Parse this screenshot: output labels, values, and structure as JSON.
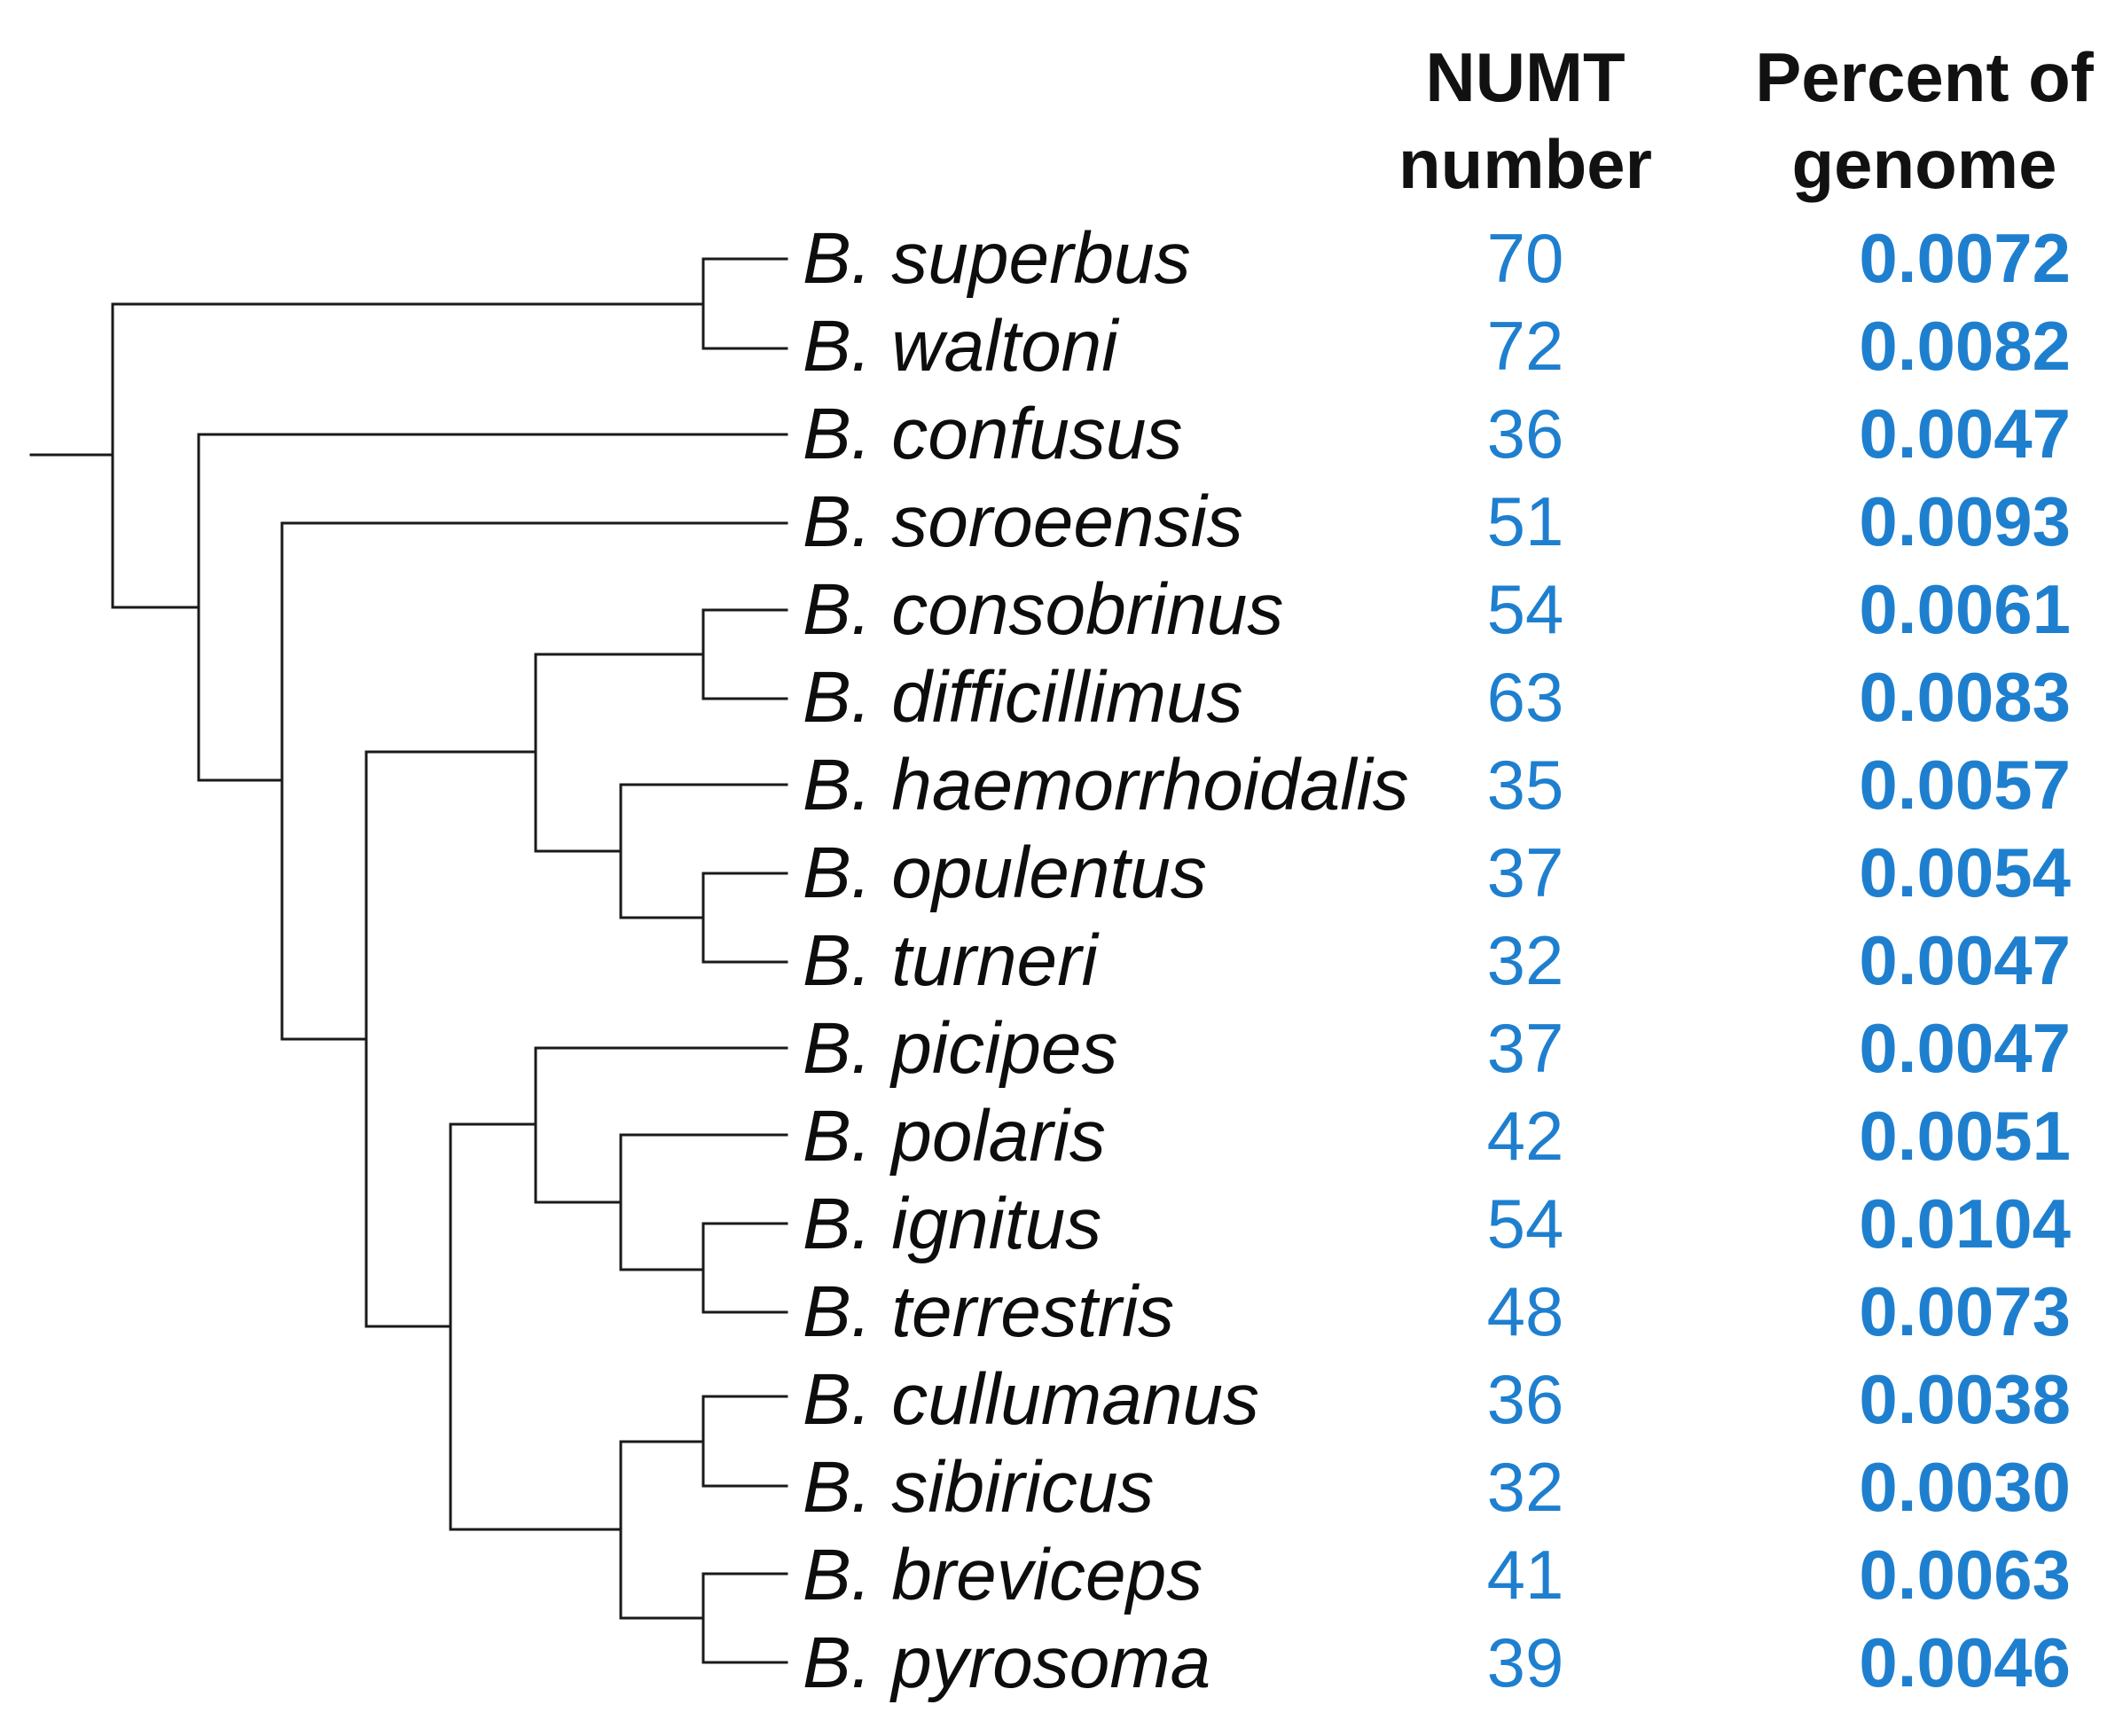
{
  "headers": {
    "numt_line1": "NUMT",
    "numt_line2": "number",
    "pct_line1": "Percent of",
    "pct_line2": "genome"
  },
  "colors": {
    "value_color": "#1f7fcf",
    "tree_color": "#1a1a1a"
  },
  "tree_newick": "((superbus,waltoni),(confusus,(soroeensis,(((consobrinus,difficillimus),(haemorrhoidalis,(opulentus,turneri))),((picipes,(polaris,(ignitus,terrestris))),((cullumanus,sibiricus),(breviceps,pyrosoma)))))));",
  "rows": [
    {
      "species": "B. superbus",
      "numt": "70",
      "percent": "0.0072"
    },
    {
      "species": "B. waltoni",
      "numt": "72",
      "percent": "0.0082"
    },
    {
      "species": "B. confusus",
      "numt": "36",
      "percent": "0.0047"
    },
    {
      "species": "B. soroeensis",
      "numt": "51",
      "percent": "0.0093"
    },
    {
      "species": "B. consobrinus",
      "numt": "54",
      "percent": "0.0061"
    },
    {
      "species": "B. difficillimus",
      "numt": "63",
      "percent": "0.0083"
    },
    {
      "species": "B. haemorrhoidalis",
      "numt": "35",
      "percent": "0.0057"
    },
    {
      "species": "B. opulentus",
      "numt": "37",
      "percent": "0.0054"
    },
    {
      "species": "B. turneri",
      "numt": "32",
      "percent": "0.0047"
    },
    {
      "species": "B. picipes",
      "numt": "37",
      "percent": "0.0047"
    },
    {
      "species": "B. polaris",
      "numt": "42",
      "percent": "0.0051"
    },
    {
      "species": "B. ignitus",
      "numt": "54",
      "percent": "0.0104"
    },
    {
      "species": "B. terrestris",
      "numt": "48",
      "percent": "0.0073"
    },
    {
      "species": "B. cullumanus",
      "numt": "36",
      "percent": "0.0038"
    },
    {
      "species": "B. sibiricus",
      "numt": "32",
      "percent": "0.0030"
    },
    {
      "species": "B. breviceps",
      "numt": "41",
      "percent": "0.0063"
    },
    {
      "species": "B. pyrosoma",
      "numt": "39",
      "percent": "0.0046"
    }
  ]
}
